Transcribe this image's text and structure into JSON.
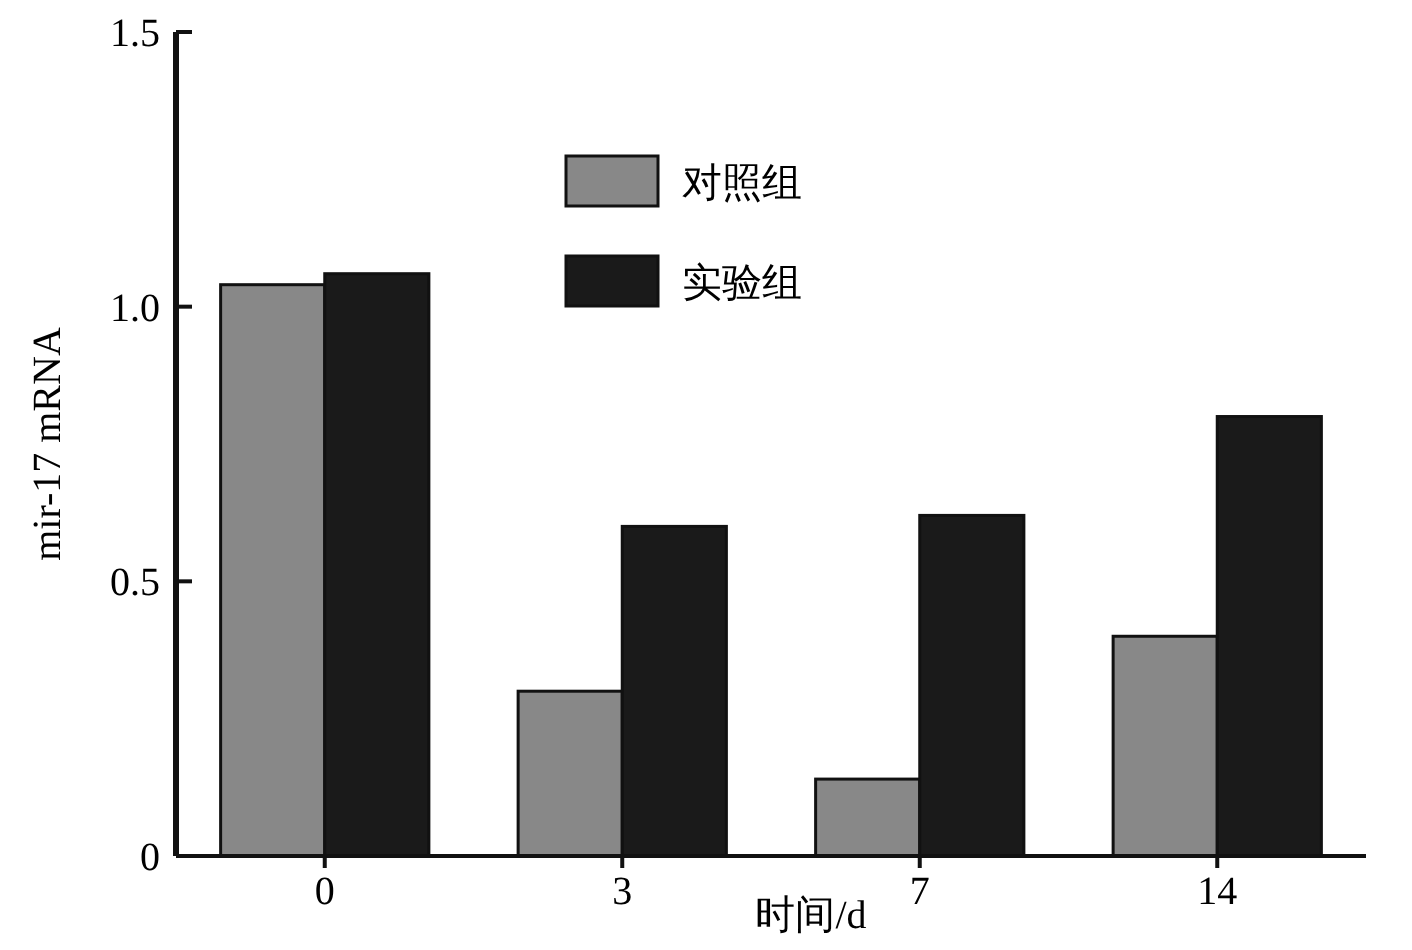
{
  "chart_data": {
    "type": "bar",
    "xlabel": "时间/d",
    "ylabel": "mir-17 mRNA",
    "categories": [
      "0",
      "3",
      "7",
      "14"
    ],
    "series": [
      {
        "name": "对照组",
        "color": "#888888",
        "values": [
          1.04,
          0.3,
          0.14,
          0.4
        ]
      },
      {
        "name": "实验组",
        "color": "#1a1a1a",
        "values": [
          1.06,
          0.6,
          0.62,
          0.8
        ]
      }
    ],
    "ylim": [
      0,
      1.5
    ],
    "yticks": [
      0,
      {
        "value": 0.5,
        "label": "0.5"
      },
      {
        "value": 1,
        "label": "1.0"
      },
      {
        "value": 1.5,
        "label": "1.5"
      }
    ],
    "grid": false,
    "legend": "top"
  }
}
